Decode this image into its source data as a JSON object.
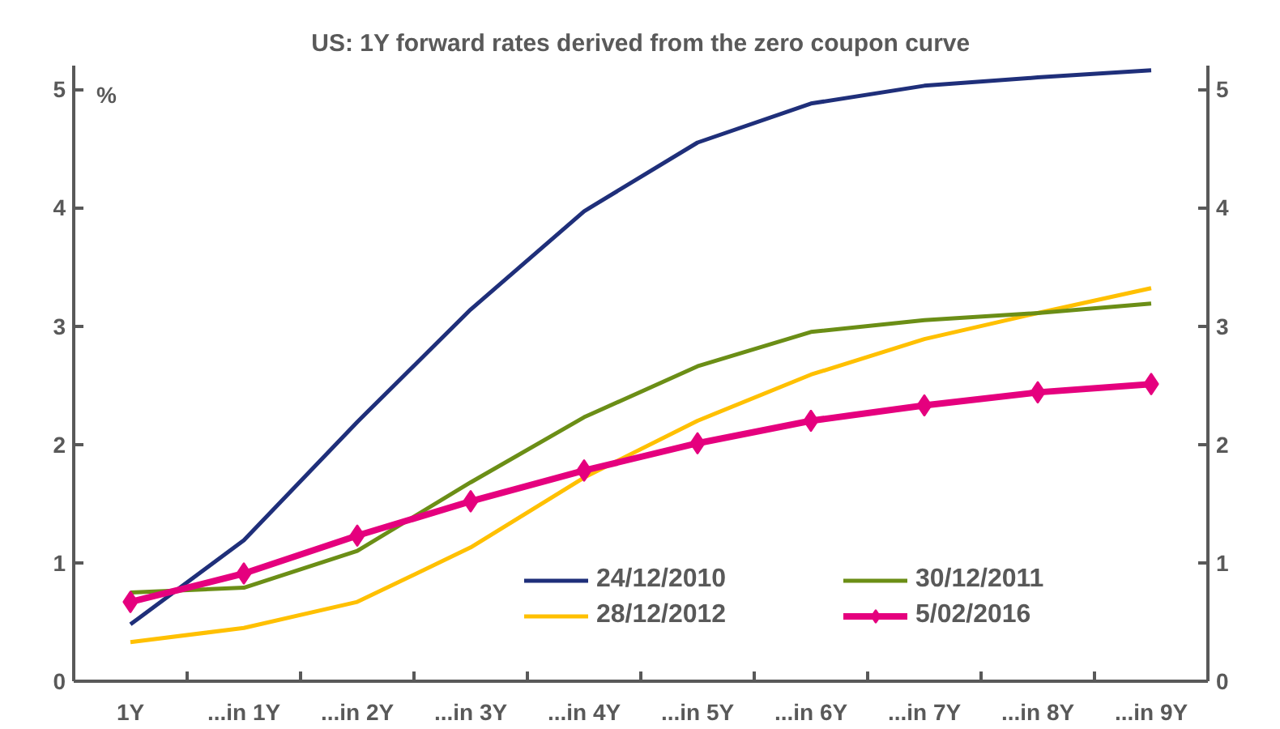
{
  "chart_data": {
    "type": "line",
    "title": "US: 1Y forward rates derived from the zero coupon curve",
    "categories": [
      "1Y",
      "...in 1Y",
      "...in 2Y",
      "...in 3Y",
      "...in 4Y",
      "...in 5Y",
      "...in 6Y",
      "...in 7Y",
      "...in 8Y",
      "...in 9Y"
    ],
    "series": [
      {
        "name": "24/12/2010",
        "color": "#1f2f7a",
        "values": [
          0.48,
          1.19,
          2.19,
          3.14,
          3.97,
          4.55,
          4.88,
          5.03,
          5.1,
          5.16
        ]
      },
      {
        "name": "28/12/2012",
        "color": "#ffc000",
        "values": [
          0.33,
          0.45,
          0.67,
          1.13,
          1.72,
          2.2,
          2.59,
          2.89,
          3.11,
          3.32
        ]
      },
      {
        "name": "30/12/2011",
        "color": "#6b8e16",
        "values": [
          0.75,
          0.79,
          1.1,
          1.68,
          2.23,
          2.66,
          2.95,
          3.05,
          3.11,
          3.19
        ]
      },
      {
        "name": "5/02/2016",
        "color": "#e5007e",
        "values": [
          0.67,
          0.91,
          1.23,
          1.52,
          1.78,
          2.01,
          2.2,
          2.33,
          2.44,
          2.51
        ],
        "marker": "diamond"
      }
    ],
    "ylim": [
      0,
      5.2
    ],
    "yticks": [
      0,
      1,
      2,
      3,
      4,
      5
    ],
    "y2lim": [
      0,
      5.2
    ],
    "y2ticks": [
      0,
      1,
      2,
      3,
      4,
      5
    ],
    "annotations": [
      "%"
    ],
    "grid": false,
    "legend": "bottom right"
  }
}
